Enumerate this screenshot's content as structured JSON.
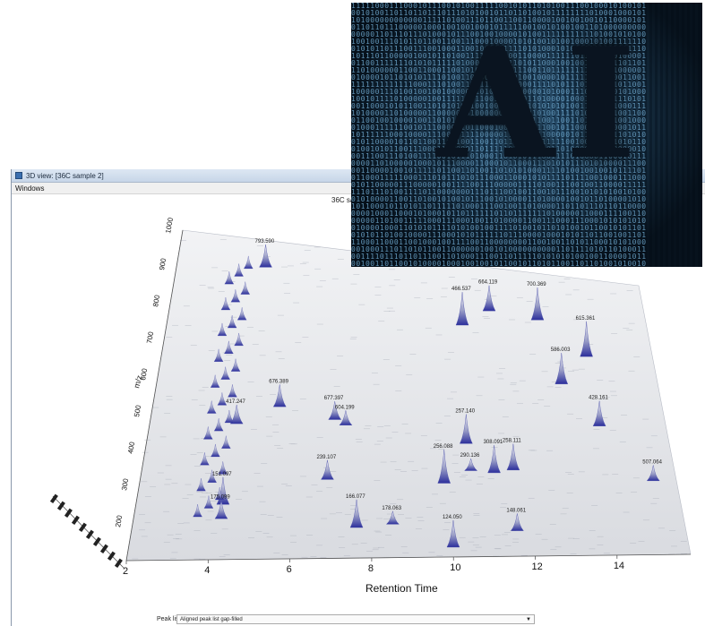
{
  "window": {
    "title": "3D view: [36C sample 2]",
    "menu": [
      "Windows"
    ],
    "plot_title": "36C sa"
  },
  "bottom_bar": {
    "peak_list_label": "Peak list:",
    "peak_list_value": "Aligned peak list gap-filled"
  },
  "overlay": {
    "text": "AI"
  },
  "chart_data": {
    "type": "surface-3d",
    "xlabel": "Retention Time",
    "ylabel": "m/z",
    "x_ticks": [
      "2",
      "4",
      "6",
      "8",
      "10",
      "12",
      "14"
    ],
    "y_ticks": [
      "200",
      "300",
      "400",
      "500",
      "600",
      "700",
      "800",
      "900",
      "1000"
    ],
    "xlim": [
      2,
      15.8
    ],
    "ylim": [
      100,
      1000
    ],
    "peak_labels": [
      {
        "rt": 11.2,
        "mz": 864,
        "label": "664.119"
      },
      {
        "rt": 10.4,
        "mz": 812,
        "label": "466.537"
      },
      {
        "rt": 12.6,
        "mz": 850,
        "label": "700.369"
      },
      {
        "rt": 13.9,
        "mz": 745,
        "label": "615.361"
      },
      {
        "rt": 13.1,
        "mz": 650,
        "label": "586.003"
      },
      {
        "rt": 14.0,
        "mz": 520,
        "label": "428.161"
      },
      {
        "rt": 15.2,
        "mz": 345,
        "label": "507.064"
      },
      {
        "rt": 11.6,
        "mz": 370,
        "label": "258.111"
      },
      {
        "rt": 10.5,
        "mz": 365,
        "label": "290.136"
      },
      {
        "rt": 11.1,
        "mz": 360,
        "label": "308.091"
      },
      {
        "rt": 9.8,
        "mz": 325,
        "label": "256.088"
      },
      {
        "rt": 6.8,
        "mz": 330,
        "label": "239.107"
      },
      {
        "rt": 7.2,
        "mz": 490,
        "label": "604.199"
      },
      {
        "rt": 10.4,
        "mz": 448,
        "label": "257.140"
      },
      {
        "rt": 4.2,
        "mz": 255,
        "label": "151.097"
      },
      {
        "rt": 4.2,
        "mz": 215,
        "label": "175.099"
      },
      {
        "rt": 10.0,
        "mz": 130,
        "label": "124.050"
      },
      {
        "rt": 11.6,
        "mz": 180,
        "label": "148.061"
      },
      {
        "rt": 6.9,
        "mz": 505,
        "label": "677.397"
      },
      {
        "rt": 5.4,
        "mz": 535,
        "label": "676.389"
      },
      {
        "rt": 4.6,
        "mz": 925,
        "label": "793.590"
      },
      {
        "rt": 4.3,
        "mz": 482,
        "label": "417.247"
      },
      {
        "rt": 7.6,
        "mz": 190,
        "label": "166.077"
      },
      {
        "rt": 8.5,
        "mz": 200,
        "label": "178.063"
      }
    ]
  }
}
